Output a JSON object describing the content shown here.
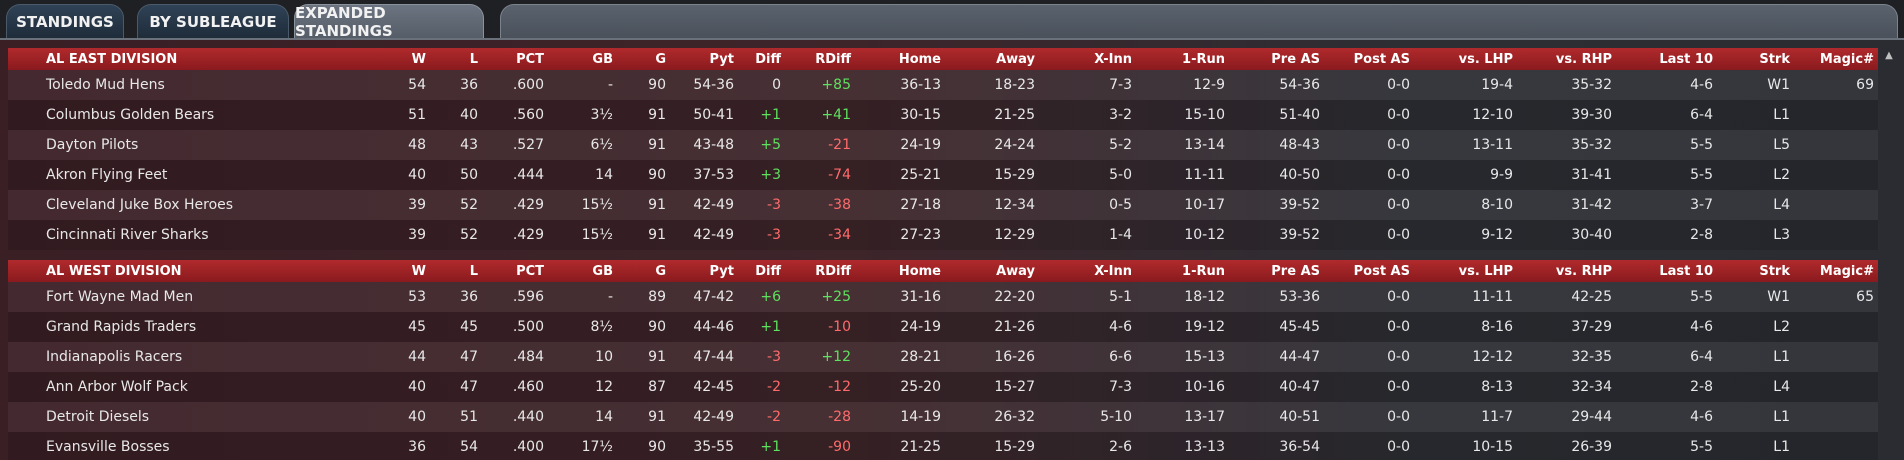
{
  "tabs": [
    {
      "label": "STANDINGS"
    },
    {
      "label": "BY SUBLEAGUE"
    },
    {
      "label": "EXPANDED STANDINGS"
    }
  ],
  "columns": [
    "W",
    "L",
    "PCT",
    "GB",
    "G",
    "Pyt",
    "Diff",
    "RDiff",
    "Home",
    "Away",
    "X-Inn",
    "1-Run",
    "Pre AS",
    "Post AS",
    "vs. LHP",
    "vs. RHP",
    "Last 10",
    "Strk",
    "Magic#"
  ],
  "divisions": [
    {
      "name": "AL EAST DIVISION",
      "teams": [
        {
          "team": "Toledo  Mud Hens",
          "W": "54",
          "L": "36",
          "PCT": ".600",
          "GB": "-",
          "G": "90",
          "Pyt": "54-36",
          "Diff": "0",
          "RDiff": "+85",
          "Home": "36-13",
          "Away": "18-23",
          "XInn": "7-3",
          "OneRun": "12-9",
          "PreAS": "54-36",
          "PostAS": "0-0",
          "vsLHP": "19-4",
          "vsRHP": "35-32",
          "Last10": "4-6",
          "Strk": "W1",
          "Magic": "69"
        },
        {
          "team": "Columbus Golden Bears",
          "W": "51",
          "L": "40",
          "PCT": ".560",
          "GB": "3½",
          "G": "91",
          "Pyt": "50-41",
          "Diff": "+1",
          "RDiff": "+41",
          "Home": "30-15",
          "Away": "21-25",
          "XInn": "3-2",
          "OneRun": "15-10",
          "PreAS": "51-40",
          "PostAS": "0-0",
          "vsLHP": "12-10",
          "vsRHP": "39-30",
          "Last10": "6-4",
          "Strk": "L1",
          "Magic": ""
        },
        {
          "team": "Dayton Pilots",
          "W": "48",
          "L": "43",
          "PCT": ".527",
          "GB": "6½",
          "G": "91",
          "Pyt": "43-48",
          "Diff": "+5",
          "RDiff": "-21",
          "Home": "24-19",
          "Away": "24-24",
          "XInn": "5-2",
          "OneRun": "13-14",
          "PreAS": "48-43",
          "PostAS": "0-0",
          "vsLHP": "13-11",
          "vsRHP": "35-32",
          "Last10": "5-5",
          "Strk": "L5",
          "Magic": ""
        },
        {
          "team": "Akron  Flying Feet",
          "W": "40",
          "L": "50",
          "PCT": ".444",
          "GB": "14",
          "G": "90",
          "Pyt": "37-53",
          "Diff": "+3",
          "RDiff": "-74",
          "Home": "25-21",
          "Away": "15-29",
          "XInn": "5-0",
          "OneRun": "11-11",
          "PreAS": "40-50",
          "PostAS": "0-0",
          "vsLHP": "9-9",
          "vsRHP": "31-41",
          "Last10": "5-5",
          "Strk": "L2",
          "Magic": ""
        },
        {
          "team": "Cleveland Juke Box Heroes",
          "W": "39",
          "L": "52",
          "PCT": ".429",
          "GB": "15½",
          "G": "91",
          "Pyt": "42-49",
          "Diff": "-3",
          "RDiff": "-38",
          "Home": "27-18",
          "Away": "12-34",
          "XInn": "0-5",
          "OneRun": "10-17",
          "PreAS": "39-52",
          "PostAS": "0-0",
          "vsLHP": "8-10",
          "vsRHP": "31-42",
          "Last10": "3-7",
          "Strk": "L4",
          "Magic": ""
        },
        {
          "team": "Cincinnati River Sharks",
          "W": "39",
          "L": "52",
          "PCT": ".429",
          "GB": "15½",
          "G": "91",
          "Pyt": "42-49",
          "Diff": "-3",
          "RDiff": "-34",
          "Home": "27-23",
          "Away": "12-29",
          "XInn": "1-4",
          "OneRun": "10-12",
          "PreAS": "39-52",
          "PostAS": "0-0",
          "vsLHP": "9-12",
          "vsRHP": "30-40",
          "Last10": "2-8",
          "Strk": "L3",
          "Magic": ""
        }
      ]
    },
    {
      "name": "AL WEST DIVISION",
      "teams": [
        {
          "team": "Fort Wayne Mad Men",
          "W": "53",
          "L": "36",
          "PCT": ".596",
          "GB": "-",
          "G": "89",
          "Pyt": "47-42",
          "Diff": "+6",
          "RDiff": "+25",
          "Home": "31-16",
          "Away": "22-20",
          "XInn": "5-1",
          "OneRun": "18-12",
          "PreAS": "53-36",
          "PostAS": "0-0",
          "vsLHP": "11-11",
          "vsRHP": "42-25",
          "Last10": "5-5",
          "Strk": "W1",
          "Magic": "65"
        },
        {
          "team": "Grand Rapids Traders",
          "W": "45",
          "L": "45",
          "PCT": ".500",
          "GB": "8½",
          "G": "90",
          "Pyt": "44-46",
          "Diff": "+1",
          "RDiff": "-10",
          "Home": "24-19",
          "Away": "21-26",
          "XInn": "4-6",
          "OneRun": "19-12",
          "PreAS": "45-45",
          "PostAS": "0-0",
          "vsLHP": "8-16",
          "vsRHP": "37-29",
          "Last10": "4-6",
          "Strk": "L2",
          "Magic": ""
        },
        {
          "team": "Indianapolis Racers",
          "W": "44",
          "L": "47",
          "PCT": ".484",
          "GB": "10",
          "G": "91",
          "Pyt": "47-44",
          "Diff": "-3",
          "RDiff": "+12",
          "Home": "28-21",
          "Away": "16-26",
          "XInn": "6-6",
          "OneRun": "15-13",
          "PreAS": "44-47",
          "PostAS": "0-0",
          "vsLHP": "12-12",
          "vsRHP": "32-35",
          "Last10": "6-4",
          "Strk": "L1",
          "Magic": ""
        },
        {
          "team": "Ann Arbor Wolf Pack",
          "W": "40",
          "L": "47",
          "PCT": ".460",
          "GB": "12",
          "G": "87",
          "Pyt": "42-45",
          "Diff": "-2",
          "RDiff": "-12",
          "Home": "25-20",
          "Away": "15-27",
          "XInn": "7-3",
          "OneRun": "10-16",
          "PreAS": "40-47",
          "PostAS": "0-0",
          "vsLHP": "8-13",
          "vsRHP": "32-34",
          "Last10": "2-8",
          "Strk": "L4",
          "Magic": ""
        },
        {
          "team": "Detroit Diesels",
          "W": "40",
          "L": "51",
          "PCT": ".440",
          "GB": "14",
          "G": "91",
          "Pyt": "42-49",
          "Diff": "-2",
          "RDiff": "-28",
          "Home": "14-19",
          "Away": "26-32",
          "XInn": "5-10",
          "OneRun": "13-17",
          "PreAS": "40-51",
          "PostAS": "0-0",
          "vsLHP": "11-7",
          "vsRHP": "29-44",
          "Last10": "4-6",
          "Strk": "L1",
          "Magic": ""
        },
        {
          "team": "Evansville Bosses",
          "W": "36",
          "L": "54",
          "PCT": ".400",
          "GB": "17½",
          "G": "90",
          "Pyt": "35-55",
          "Diff": "+1",
          "RDiff": "-90",
          "Home": "21-25",
          "Away": "15-29",
          "XInn": "2-6",
          "OneRun": "13-13",
          "PreAS": "36-54",
          "PostAS": "0-0",
          "vsLHP": "10-15",
          "vsRHP": "26-39",
          "Last10": "5-5",
          "Strk": "L1",
          "Magic": ""
        }
      ]
    }
  ],
  "colors": {
    "positive": "#5fe05f",
    "negative": "#ff6b6b",
    "header": "#a82428"
  },
  "icons": {
    "scroll_up": "chevron-up-icon",
    "scroll_down": "chevron-down-icon"
  }
}
